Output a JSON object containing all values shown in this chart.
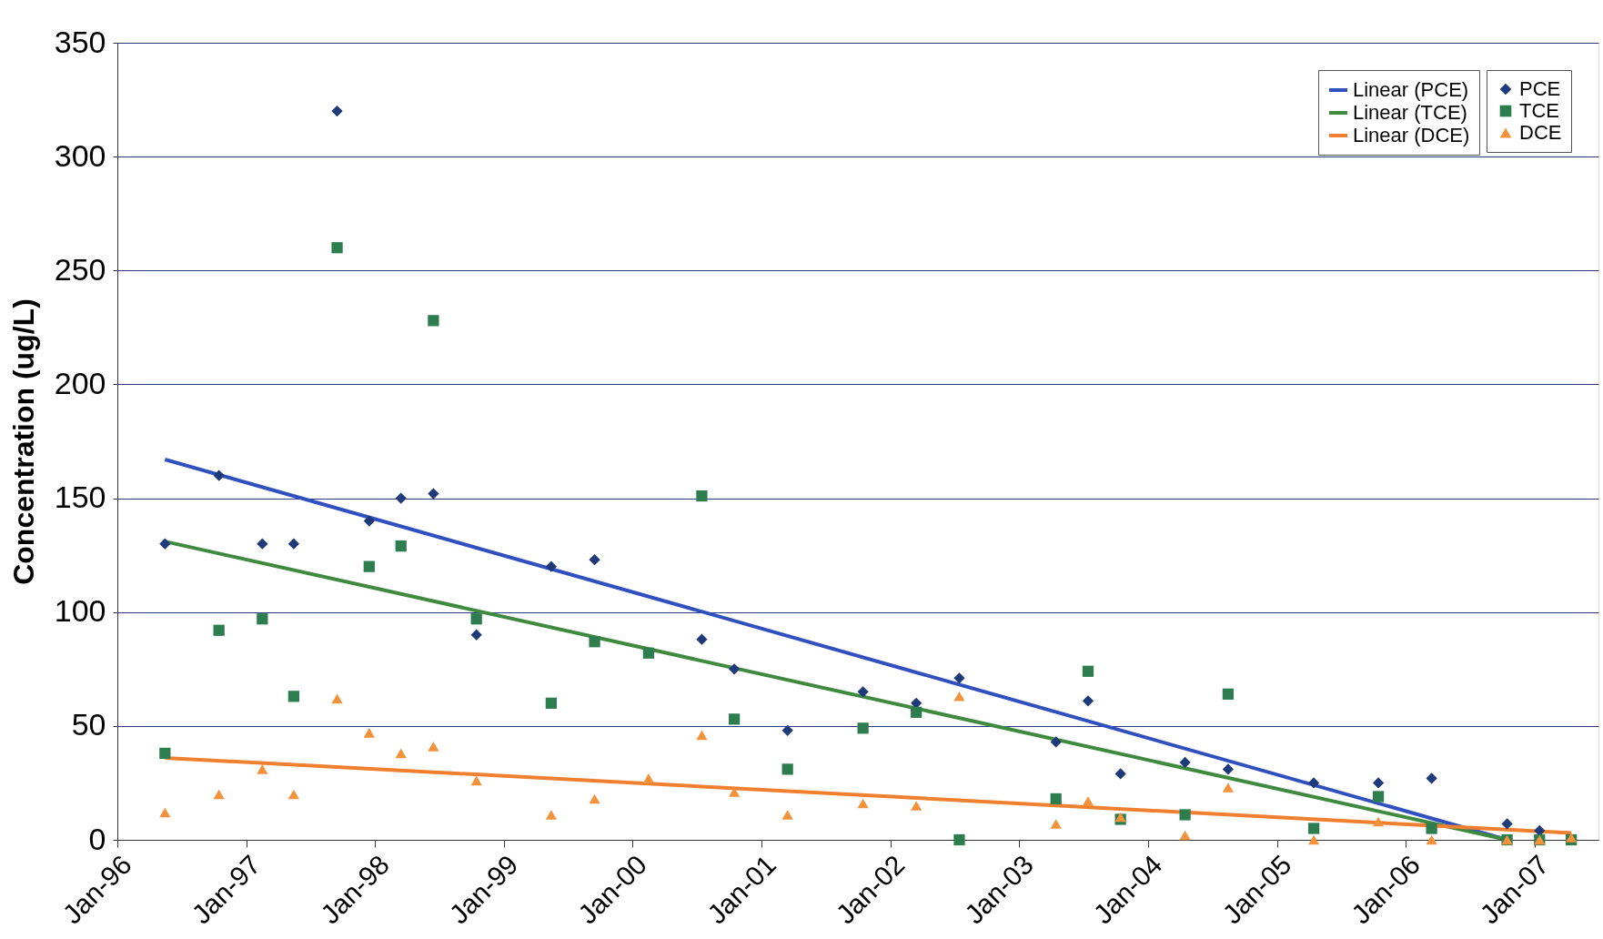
{
  "chart_data": {
    "type": "scatter",
    "ylabel": "Concentration (ug/L)",
    "xlim": [
      "1996-01-01",
      "2007-07-01"
    ],
    "xticks": [
      {
        "value": "1996-01-01",
        "label": "Jan-96"
      },
      {
        "value": "1997-01-01",
        "label": "Jan-97"
      },
      {
        "value": "1998-01-01",
        "label": "Jan-98"
      },
      {
        "value": "1999-01-01",
        "label": "Jan-99"
      },
      {
        "value": "2000-01-01",
        "label": "Jan-00"
      },
      {
        "value": "2001-01-01",
        "label": "Jan-01"
      },
      {
        "value": "2002-01-01",
        "label": "Jan-02"
      },
      {
        "value": "2003-01-01",
        "label": "Jan-03"
      },
      {
        "value": "2004-01-01",
        "label": "Jan-04"
      },
      {
        "value": "2005-01-01",
        "label": "Jan-05"
      },
      {
        "value": "2006-01-01",
        "label": "Jan-06"
      },
      {
        "value": "2007-01-01",
        "label": "Jan-07"
      }
    ],
    "ylim": [
      0,
      350
    ],
    "yticks": [
      0,
      50,
      100,
      150,
      200,
      250,
      300,
      350
    ],
    "grid": "y",
    "legend": "top right",
    "series": [
      {
        "name": "PCE",
        "marker": "diamond",
        "color": "#1f3a7a",
        "x": [
          "1996-05-15",
          "1996-10-15",
          "1997-02-15",
          "1997-05-15",
          "1997-09-15",
          "1997-12-15",
          "1998-03-15",
          "1998-06-15",
          "1998-10-15",
          "1999-05-15",
          "1999-09-15",
          "2000-07-15",
          "2000-10-15",
          "2001-03-15",
          "2001-10-15",
          "2002-03-15",
          "2002-07-15",
          "2003-04-15",
          "2003-07-15",
          "2003-10-15",
          "2004-04-15",
          "2004-08-15",
          "2005-04-15",
          "2005-10-15",
          "2006-03-15",
          "2006-10-15",
          "2007-01-15"
        ],
        "values": [
          130,
          160,
          130,
          130,
          320,
          140,
          150,
          152,
          90,
          120,
          123,
          88,
          75,
          48,
          65,
          60,
          71,
          43,
          61,
          29,
          34,
          31,
          25,
          25,
          27,
          7,
          4
        ]
      },
      {
        "name": "TCE",
        "marker": "square",
        "color": "#2e7d4f",
        "x": [
          "1996-05-15",
          "1996-10-15",
          "1997-02-15",
          "1997-05-15",
          "1997-09-15",
          "1997-12-15",
          "1998-03-15",
          "1998-06-15",
          "1998-10-15",
          "1999-05-15",
          "1999-09-15",
          "2000-02-15",
          "2000-07-15",
          "2000-10-15",
          "2001-03-15",
          "2001-10-15",
          "2002-03-15",
          "2002-07-15",
          "2003-04-15",
          "2003-07-15",
          "2003-10-15",
          "2004-04-15",
          "2004-08-15",
          "2005-04-15",
          "2005-10-15",
          "2006-03-15",
          "2006-10-15",
          "2007-01-15",
          "2007-04-15"
        ],
        "values": [
          38,
          92,
          97,
          63,
          260,
          120,
          129,
          228,
          97,
          60,
          87,
          82,
          151,
          53,
          31,
          49,
          56,
          0,
          18,
          74,
          9,
          11,
          64,
          5,
          19,
          5,
          0,
          0,
          0
        ]
      },
      {
        "name": "DCE",
        "marker": "triangle",
        "color": "#f4923c",
        "x": [
          "1996-05-15",
          "1996-10-15",
          "1997-02-15",
          "1997-05-15",
          "1997-09-15",
          "1997-12-15",
          "1998-03-15",
          "1998-06-15",
          "1998-10-15",
          "1999-05-15",
          "1999-09-15",
          "2000-02-15",
          "2000-07-15",
          "2000-10-15",
          "2001-03-15",
          "2001-10-15",
          "2002-03-15",
          "2002-07-15",
          "2003-04-15",
          "2003-07-15",
          "2003-10-15",
          "2004-04-15",
          "2004-08-15",
          "2005-04-15",
          "2005-10-15",
          "2006-03-15",
          "2006-10-15",
          "2007-01-15",
          "2007-04-15"
        ],
        "values": [
          12,
          20,
          31,
          20,
          62,
          47,
          38,
          41,
          26,
          11,
          18,
          27,
          46,
          21,
          11,
          16,
          15,
          63,
          7,
          17,
          10,
          2,
          23,
          0,
          8,
          0,
          0,
          0,
          1
        ]
      },
      {
        "name": "Linear (PCE)",
        "type": "line",
        "color": "#3050c0",
        "x": [
          "1996-05-15",
          "2006-10-15"
        ],
        "values": [
          167,
          0
        ]
      },
      {
        "name": "Linear (TCE)",
        "type": "line",
        "color": "#3f8a3f",
        "x": [
          "1996-05-15",
          "2006-10-15"
        ],
        "values": [
          131,
          0
        ]
      },
      {
        "name": "Linear (DCE)",
        "type": "line",
        "color": "#f08030",
        "x": [
          "1996-05-15",
          "2007-04-15"
        ],
        "values": [
          36,
          3
        ]
      }
    ]
  }
}
